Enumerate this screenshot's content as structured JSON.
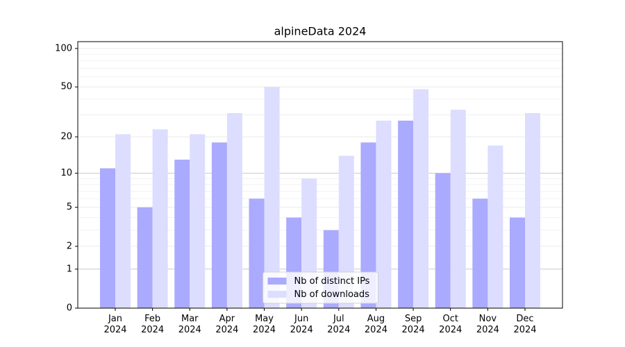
{
  "chart_data": {
    "type": "bar",
    "title": "alpineData 2024",
    "categories": [
      "Jan\n2024",
      "Feb\n2024",
      "Mar\n2024",
      "Apr\n2024",
      "May\n2024",
      "Jun\n2024",
      "Jul\n2024",
      "Aug\n2024",
      "Sep\n2024",
      "Oct\n2024",
      "Nov\n2024",
      "Dec\n2024"
    ],
    "series": [
      {
        "name": "Nb of distinct IPs",
        "color": "#aaaaff",
        "values": [
          11,
          5,
          13,
          18,
          6,
          4,
          3,
          18,
          27,
          10,
          6,
          4
        ]
      },
      {
        "name": "Nb of downloads",
        "color": "#ddddff",
        "values": [
          21,
          23,
          21,
          31,
          50,
          9,
          14,
          27,
          48,
          33,
          17,
          31
        ]
      }
    ],
    "yscale": "log1p",
    "ylim": [
      0,
      113
    ],
    "yticks": [
      0,
      1,
      2,
      5,
      10,
      20,
      50,
      100
    ],
    "yminorticks": [
      3,
      4,
      6,
      7,
      8,
      9,
      30,
      40,
      60,
      70,
      80,
      90
    ],
    "grid": true,
    "legend": "lower center"
  }
}
